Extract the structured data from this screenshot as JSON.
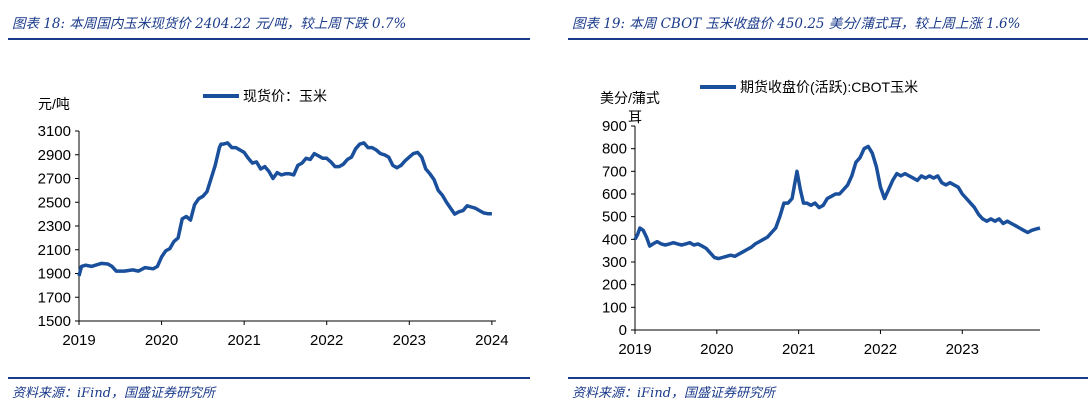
{
  "charts": [
    {
      "caption": "图表 18:  本周国内玉米现货价 2404.22 元/吨，较上周下跌 0.7%",
      "source": "资料来源：iFind，国盛证券研究所",
      "unit_label": "元/吨",
      "line_color": "#1a4f9c",
      "title_color": "#1a3a8a"
    },
    {
      "caption": "图表 19:  本周 CBOT 玉米收盘价 450.25 美分/蒲式耳，较上周上涨 1.6%",
      "source": "资料来源：iFind，国盛证券研究所",
      "unit_label_line1": "美分/蒲式",
      "unit_label_line2": "耳",
      "line_color": "#1a4f9c",
      "title_color": "#1a3a8a"
    }
  ],
  "chart_data": [
    {
      "type": "line",
      "title": "",
      "ylabel": "元/吨",
      "xlabel": "",
      "ylim": [
        1500,
        3100
      ],
      "yticks": [
        1500,
        1700,
        1900,
        2100,
        2300,
        2500,
        2700,
        2900,
        3100
      ],
      "xlim": [
        2019.0,
        2024.05
      ],
      "xticks": [
        "2019",
        "2020",
        "2021",
        "2022",
        "2023",
        "2024"
      ],
      "legend": "top-center",
      "grid": false,
      "series": [
        {
          "name": "现货价：玉米",
          "x": [
            2019.0,
            2019.03,
            2019.08,
            2019.15,
            2019.2,
            2019.27,
            2019.35,
            2019.4,
            2019.45,
            2019.55,
            2019.65,
            2019.72,
            2019.8,
            2019.9,
            2019.95,
            2020.0,
            2020.05,
            2020.1,
            2020.15,
            2020.2,
            2020.25,
            2020.3,
            2020.35,
            2020.4,
            2020.45,
            2020.5,
            2020.55,
            2020.6,
            2020.65,
            2020.7,
            2020.72,
            2020.75,
            2020.8,
            2020.85,
            2020.9,
            2020.95,
            2021.0,
            2021.05,
            2021.1,
            2021.15,
            2021.2,
            2021.25,
            2021.3,
            2021.35,
            2021.4,
            2021.45,
            2021.5,
            2021.55,
            2021.6,
            2021.65,
            2021.7,
            2021.75,
            2021.8,
            2021.85,
            2021.9,
            2021.95,
            2022.0,
            2022.05,
            2022.1,
            2022.15,
            2022.2,
            2022.25,
            2022.3,
            2022.35,
            2022.4,
            2022.45,
            2022.5,
            2022.55,
            2022.6,
            2022.65,
            2022.7,
            2022.75,
            2022.8,
            2022.85,
            2022.9,
            2022.95,
            2023.0,
            2023.05,
            2023.1,
            2023.15,
            2023.2,
            2023.25,
            2023.3,
            2023.35,
            2023.4,
            2023.45,
            2023.5,
            2023.55,
            2023.6,
            2023.65,
            2023.7,
            2023.75,
            2023.8,
            2023.85,
            2023.9,
            2023.95,
            2024.0
          ],
          "y": [
            1880,
            1960,
            1970,
            1960,
            1970,
            1985,
            1980,
            1960,
            1920,
            1920,
            1930,
            1920,
            1950,
            1940,
            1960,
            2040,
            2090,
            2110,
            2170,
            2200,
            2360,
            2380,
            2350,
            2480,
            2530,
            2550,
            2590,
            2700,
            2810,
            2960,
            2990,
            2990,
            3000,
            2960,
            2960,
            2940,
            2920,
            2870,
            2830,
            2840,
            2780,
            2800,
            2760,
            2700,
            2750,
            2730,
            2740,
            2740,
            2730,
            2810,
            2830,
            2870,
            2860,
            2910,
            2890,
            2870,
            2870,
            2840,
            2800,
            2800,
            2820,
            2860,
            2880,
            2950,
            2990,
            3000,
            2960,
            2960,
            2940,
            2910,
            2900,
            2880,
            2810,
            2790,
            2810,
            2850,
            2880,
            2910,
            2920,
            2880,
            2780,
            2740,
            2690,
            2600,
            2560,
            2500,
            2450,
            2400,
            2420,
            2430,
            2470,
            2460,
            2450,
            2430,
            2410,
            2404,
            2404
          ]
        }
      ]
    },
    {
      "type": "line",
      "title": "",
      "ylabel": "美分/蒲式耳",
      "xlabel": "",
      "ylim": [
        0,
        900
      ],
      "yticks": [
        0,
        100,
        200,
        300,
        400,
        500,
        600,
        700,
        800,
        900
      ],
      "xlim": [
        2019.0,
        2023.95
      ],
      "xticks": [
        "2019",
        "2020",
        "2021",
        "2022",
        "2023"
      ],
      "legend": "top-center",
      "grid": false,
      "series": [
        {
          "name": "期货收盘价(活跃):CBOT玉米",
          "x": [
            2019.0,
            2019.03,
            2019.06,
            2019.1,
            2019.14,
            2019.18,
            2019.22,
            2019.27,
            2019.32,
            2019.37,
            2019.42,
            2019.47,
            2019.52,
            2019.57,
            2019.62,
            2019.67,
            2019.72,
            2019.77,
            2019.82,
            2019.87,
            2019.92,
            2019.97,
            2020.02,
            2020.07,
            2020.12,
            2020.17,
            2020.22,
            2020.27,
            2020.32,
            2020.37,
            2020.42,
            2020.47,
            2020.52,
            2020.57,
            2020.62,
            2020.67,
            2020.72,
            2020.77,
            2020.82,
            2020.87,
            2020.92,
            2020.95,
            2020.98,
            2021.02,
            2021.06,
            2021.1,
            2021.15,
            2021.2,
            2021.25,
            2021.3,
            2021.35,
            2021.4,
            2021.45,
            2021.5,
            2021.55,
            2021.6,
            2021.65,
            2021.7,
            2021.75,
            2021.8,
            2021.85,
            2021.9,
            2021.95,
            2022.0,
            2022.05,
            2022.1,
            2022.15,
            2022.2,
            2022.25,
            2022.3,
            2022.35,
            2022.4,
            2022.45,
            2022.5,
            2022.55,
            2022.6,
            2022.65,
            2022.7,
            2022.75,
            2022.8,
            2022.85,
            2022.9,
            2022.95,
            2023.0,
            2023.05,
            2023.1,
            2023.15,
            2023.2,
            2023.25,
            2023.3,
            2023.35,
            2023.4,
            2023.45,
            2023.5,
            2023.55,
            2023.6,
            2023.65,
            2023.7,
            2023.75,
            2023.8,
            2023.85,
            2023.9,
            2023.95
          ],
          "y": [
            400,
            420,
            450,
            440,
            410,
            370,
            380,
            390,
            380,
            375,
            380,
            385,
            380,
            375,
            380,
            385,
            375,
            380,
            370,
            360,
            340,
            320,
            315,
            320,
            325,
            330,
            325,
            335,
            345,
            355,
            365,
            380,
            390,
            400,
            410,
            430,
            450,
            500,
            560,
            560,
            580,
            640,
            700,
            620,
            560,
            560,
            550,
            560,
            540,
            550,
            580,
            590,
            600,
            600,
            620,
            640,
            680,
            740,
            760,
            800,
            810,
            780,
            720,
            630,
            580,
            620,
            660,
            690,
            680,
            690,
            680,
            670,
            660,
            680,
            670,
            680,
            670,
            680,
            650,
            640,
            650,
            640,
            630,
            600,
            580,
            560,
            540,
            510,
            490,
            480,
            490,
            480,
            490,
            470,
            480,
            470,
            460,
            450,
            440,
            430,
            440,
            445,
            450
          ]
        }
      ]
    }
  ]
}
